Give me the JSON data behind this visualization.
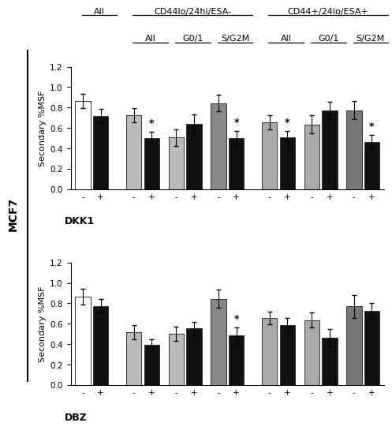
{
  "top": {
    "drug": "DKK1",
    "ylabel": "Secondary %MSF",
    "ylim": [
      0,
      1.2
    ],
    "yticks": [
      0,
      0.2,
      0.4,
      0.6,
      0.8,
      1.0,
      1.2
    ],
    "groups": [
      {
        "minus_val": 0.865,
        "minus_err": 0.07,
        "minus_color": "#ffffff",
        "plus_val": 0.715,
        "plus_err": 0.07,
        "plus_color": "#111111",
        "star": false
      },
      {
        "minus_val": 0.725,
        "minus_err": 0.07,
        "minus_color": "#bbbbbb",
        "plus_val": 0.5,
        "plus_err": 0.06,
        "plus_color": "#111111",
        "star": true
      },
      {
        "minus_val": 0.505,
        "minus_err": 0.08,
        "minus_color": "#bbbbbb",
        "plus_val": 0.64,
        "plus_err": 0.09,
        "plus_color": "#111111",
        "star": false
      },
      {
        "minus_val": 0.845,
        "minus_err": 0.08,
        "minus_color": "#888888",
        "plus_val": 0.5,
        "plus_err": 0.07,
        "plus_color": "#111111",
        "star": true
      },
      {
        "minus_val": 0.655,
        "minus_err": 0.07,
        "minus_color": "#aaaaaa",
        "plus_val": 0.51,
        "plus_err": 0.06,
        "plus_color": "#111111",
        "star": true
      },
      {
        "minus_val": 0.635,
        "minus_err": 0.09,
        "minus_color": "#aaaaaa",
        "plus_val": 0.775,
        "plus_err": 0.085,
        "plus_color": "#111111",
        "star": false
      },
      {
        "minus_val": 0.775,
        "minus_err": 0.09,
        "minus_color": "#777777",
        "plus_val": 0.465,
        "plus_err": 0.065,
        "plus_color": "#111111",
        "star": true
      }
    ]
  },
  "bottom": {
    "drug": "DBZ",
    "ylabel": "Secondary %MSF",
    "ylim": [
      0,
      1.2
    ],
    "yticks": [
      0,
      0.2,
      0.4,
      0.6,
      0.8,
      1.0,
      1.2
    ],
    "groups": [
      {
        "minus_val": 0.865,
        "minus_err": 0.08,
        "minus_color": "#ffffff",
        "plus_val": 0.775,
        "plus_err": 0.065,
        "plus_color": "#111111",
        "star": false
      },
      {
        "minus_val": 0.515,
        "minus_err": 0.07,
        "minus_color": "#bbbbbb",
        "plus_val": 0.39,
        "plus_err": 0.06,
        "plus_color": "#111111",
        "star": false
      },
      {
        "minus_val": 0.505,
        "minus_err": 0.07,
        "minus_color": "#bbbbbb",
        "plus_val": 0.555,
        "plus_err": 0.065,
        "plus_color": "#111111",
        "star": false
      },
      {
        "minus_val": 0.845,
        "minus_err": 0.09,
        "minus_color": "#888888",
        "plus_val": 0.485,
        "plus_err": 0.08,
        "plus_color": "#111111",
        "star": true
      },
      {
        "minus_val": 0.655,
        "minus_err": 0.06,
        "minus_color": "#aaaaaa",
        "plus_val": 0.59,
        "plus_err": 0.065,
        "plus_color": "#111111",
        "star": false
      },
      {
        "minus_val": 0.635,
        "minus_err": 0.075,
        "minus_color": "#aaaaaa",
        "plus_val": 0.465,
        "plus_err": 0.085,
        "plus_color": "#111111",
        "star": false
      },
      {
        "minus_val": 0.77,
        "minus_err": 0.11,
        "minus_color": "#777777",
        "plus_val": 0.73,
        "plus_err": 0.07,
        "plus_color": "#111111",
        "star": false
      }
    ]
  },
  "bar_width": 0.3,
  "header1_labels": [
    "All",
    "CD44lo/24hi/ESA-",
    "CD44+/24lo/ESA+"
  ],
  "header2_labels": [
    "All",
    "G0/1",
    "S/G2M",
    "All",
    "G0/1",
    "S/G2M"
  ],
  "mcf7_label": "MCF7"
}
